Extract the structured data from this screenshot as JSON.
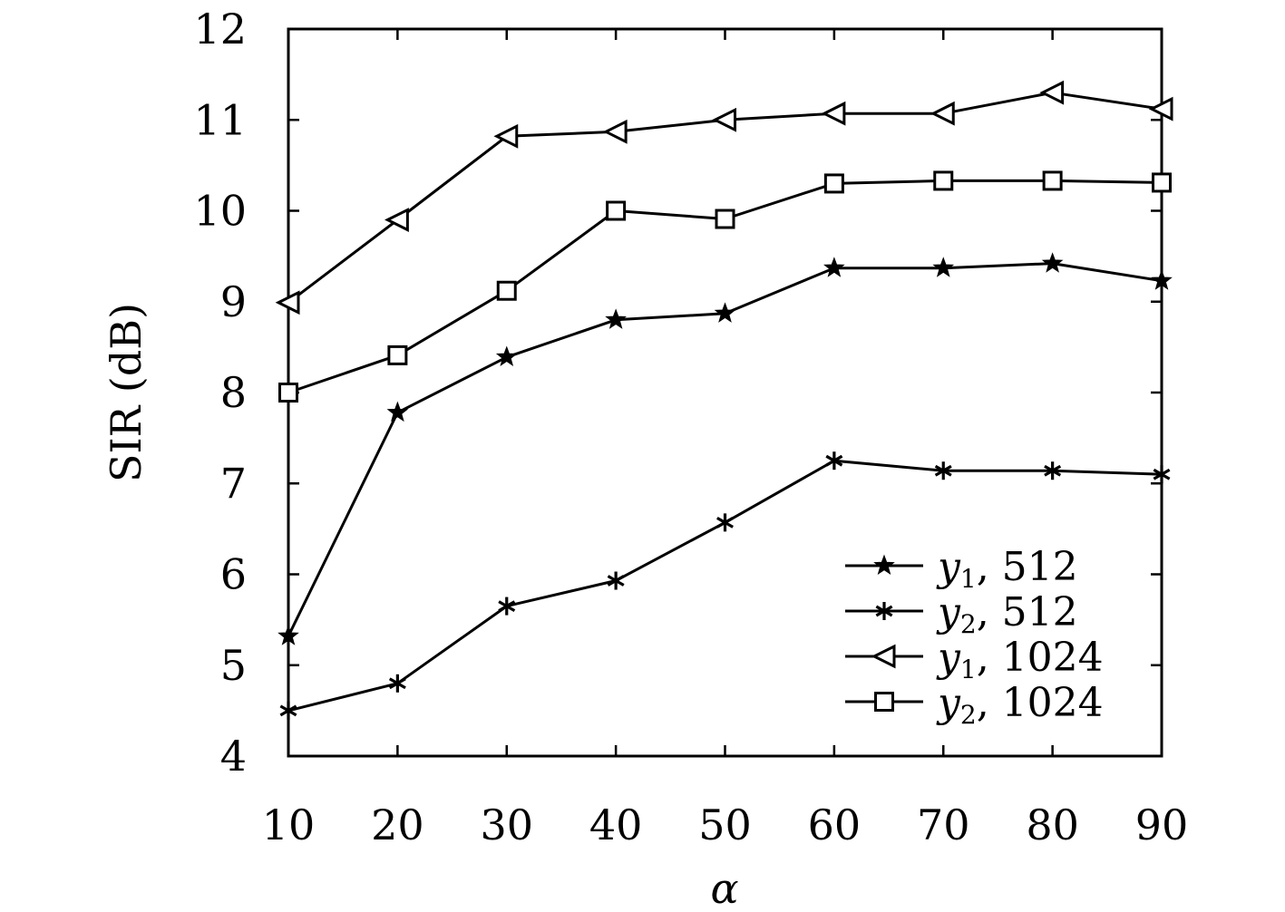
{
  "chart_data": {
    "type": "line",
    "xlabel": "α",
    "ylabel": "SIR (dB)",
    "x": [
      10,
      20,
      30,
      40,
      50,
      60,
      70,
      80,
      90
    ],
    "xlim": [
      10,
      90
    ],
    "ylim": [
      4,
      12
    ],
    "xticks": [
      10,
      20,
      30,
      40,
      50,
      60,
      70,
      80,
      90
    ],
    "yticks": [
      4,
      5,
      6,
      7,
      8,
      9,
      10,
      11,
      12
    ],
    "grid": false,
    "legend_position": "bottom-right",
    "series": [
      {
        "name": "y1, 512",
        "legend_var": "y",
        "legend_sub": "1",
        "legend_rest": ", 512",
        "marker": "star",
        "values": [
          5.32,
          7.78,
          8.39,
          8.8,
          8.87,
          9.37,
          9.37,
          9.42,
          9.23
        ]
      },
      {
        "name": "y2, 512",
        "legend_var": "y",
        "legend_sub": "2",
        "legend_rest": ", 512",
        "marker": "asterisk",
        "values": [
          4.5,
          4.8,
          5.65,
          5.93,
          6.57,
          7.25,
          7.14,
          7.14,
          7.1
        ]
      },
      {
        "name": "y1, 1024",
        "legend_var": "y",
        "legend_sub": "1",
        "legend_rest": ", 1024",
        "marker": "triangle-left",
        "values": [
          8.99,
          9.9,
          10.82,
          10.87,
          11.0,
          11.07,
          11.07,
          11.3,
          11.12
        ]
      },
      {
        "name": "y2, 1024",
        "legend_var": "y",
        "legend_sub": "2",
        "legend_rest": ", 1024",
        "marker": "square",
        "values": [
          8.0,
          8.41,
          9.12,
          10.0,
          9.91,
          10.3,
          10.33,
          10.33,
          10.31
        ]
      }
    ]
  }
}
